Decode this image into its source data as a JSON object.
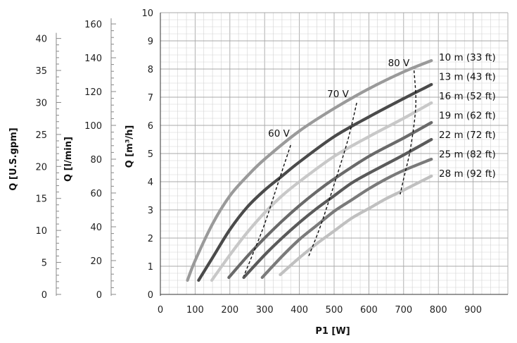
{
  "chart_data": {
    "type": "line",
    "xlabel": "P1 [W]",
    "xlim": [
      0,
      1000
    ],
    "xticks": [
      0,
      100,
      200,
      300,
      400,
      500,
      600,
      700,
      800,
      900
    ],
    "ylabel": "Q [m³/h]",
    "ylim": [
      0,
      10
    ],
    "yticks": [
      0,
      1,
      2,
      3,
      4,
      5,
      6,
      7,
      8,
      9,
      10
    ],
    "grid": true,
    "secondary_axes": [
      {
        "label": "Q [l/min]",
        "factor": 16.667,
        "ticks": [
          0,
          20,
          40,
          60,
          80,
          100,
          120,
          140,
          160
        ]
      },
      {
        "label": "Q [U.S.gpm]",
        "factor": 4.403,
        "ticks": [
          0,
          5,
          10,
          15,
          20,
          25,
          30,
          35,
          40
        ]
      }
    ],
    "series": [
      {
        "name": "10 m (33 ft)",
        "color": "#9a9a9a",
        "x": [
          78,
          100,
          150,
          200,
          250,
          300,
          400,
          500,
          600,
          700,
          780
        ],
        "y": [
          0.5,
          1.2,
          2.5,
          3.5,
          4.2,
          4.8,
          5.8,
          6.6,
          7.3,
          7.9,
          8.3
        ]
      },
      {
        "name": "13 m (43 ft)",
        "color": "#4a4a4a",
        "x": [
          110,
          150,
          200,
          250,
          300,
          350,
          400,
          500,
          600,
          700,
          780
        ],
        "y": [
          0.5,
          1.3,
          2.3,
          3.1,
          3.7,
          4.2,
          4.7,
          5.6,
          6.3,
          6.95,
          7.45
        ]
      },
      {
        "name": "16 m (52 ft)",
        "color": "#c8c8c8",
        "x": [
          148,
          200,
          250,
          300,
          350,
          400,
          500,
          600,
          700,
          780
        ],
        "y": [
          0.5,
          1.4,
          2.2,
          2.9,
          3.5,
          4.0,
          4.9,
          5.6,
          6.25,
          6.8
        ]
      },
      {
        "name": "19 m (62 ft)",
        "color": "#6a6a6a",
        "x": [
          197,
          250,
          300,
          350,
          400,
          450,
          500,
          600,
          700,
          780
        ],
        "y": [
          0.6,
          1.35,
          2.0,
          2.6,
          3.15,
          3.65,
          4.1,
          4.9,
          5.55,
          6.1
        ]
      },
      {
        "name": "22 m (72 ft)",
        "color": "#5a5a5a",
        "x": [
          240,
          300,
          350,
          400,
          450,
          500,
          550,
          600,
          700,
          780
        ],
        "y": [
          0.6,
          1.4,
          2.0,
          2.55,
          3.05,
          3.5,
          3.95,
          4.3,
          4.95,
          5.5
        ]
      },
      {
        "name": "25 m (82 ft)",
        "color": "#7a7a7a",
        "x": [
          293,
          350,
          400,
          450,
          500,
          550,
          600,
          650,
          700,
          780
        ],
        "y": [
          0.6,
          1.35,
          1.95,
          2.45,
          2.95,
          3.35,
          3.75,
          4.1,
          4.4,
          4.8
        ]
      },
      {
        "name": "28 m (92 ft)",
        "color": "#c0c0c0",
        "x": [
          345,
          400,
          450,
          500,
          550,
          600,
          650,
          700,
          780
        ],
        "y": [
          0.7,
          1.3,
          1.8,
          2.25,
          2.7,
          3.05,
          3.4,
          3.7,
          4.2
        ]
      }
    ],
    "voltage_lines": [
      {
        "label": "60 V",
        "x": [
          375,
          340,
          300,
          265,
          240
        ],
        "y": [
          5.3,
          4.0,
          2.5,
          1.4,
          0.65
        ],
        "label_x": 310,
        "label_y": 5.6
      },
      {
        "label": "70 V",
        "x": [
          565,
          540,
          500,
          460,
          425
        ],
        "y": [
          6.8,
          5.5,
          3.9,
          2.4,
          1.3
        ],
        "label_x": 480,
        "label_y": 7.0
      },
      {
        "label": "80 V",
        "x": [
          730,
          735,
          720,
          700,
          690
        ],
        "y": [
          7.95,
          6.7,
          5.2,
          4.1,
          3.55
        ],
        "label_x": 655,
        "label_y": 8.1
      }
    ]
  }
}
